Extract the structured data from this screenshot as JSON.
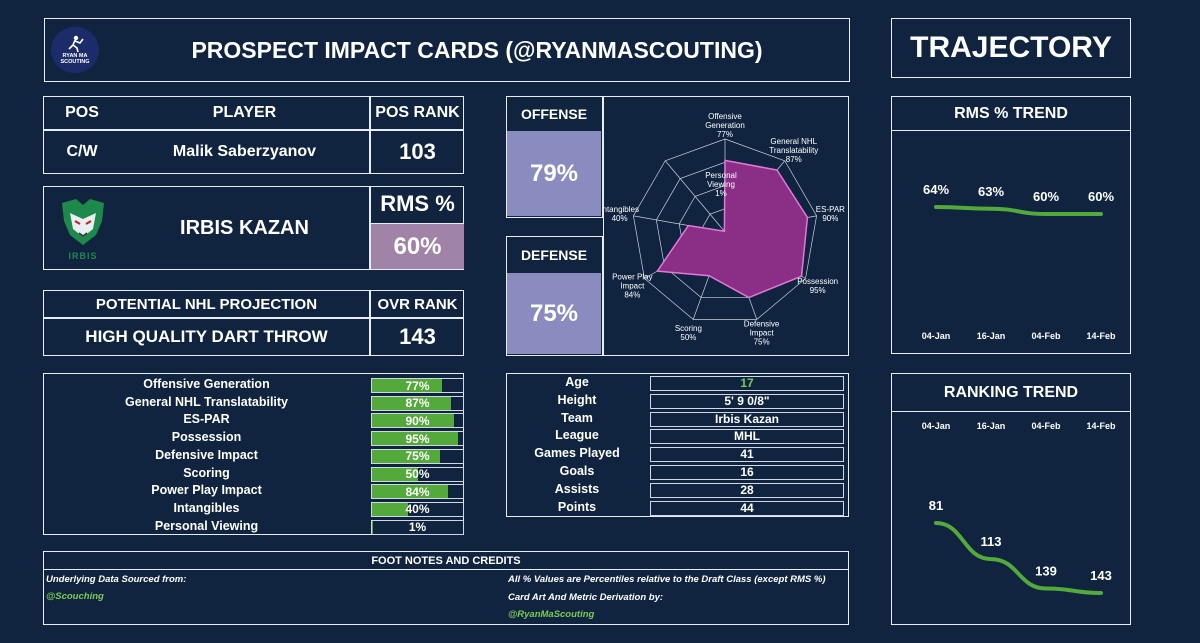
{
  "header": {
    "logo_text": "RYAN MA SCOUTING",
    "title": "PROSPECT IMPACT CARDS (@RYANMASCOUTING)",
    "trajectory_title": "TRAJECTORY"
  },
  "player": {
    "pos_header": "POS",
    "player_header": "PLAYER",
    "pos_rank_header": "POS RANK",
    "pos": "C/W",
    "name": "Malik Saberzyanov",
    "pos_rank": "103",
    "team_logo_text": "IRBIS",
    "team": "IRBIS KAZAN",
    "rms_header": "RMS %",
    "rms_value": "60%",
    "projection_header": "POTENTIAL NHL PROJECTION",
    "ovr_rank_header": "OVR RANK",
    "projection": "HIGH QUALITY DART THROW",
    "ovr_rank": "143"
  },
  "scores": {
    "offense_label": "OFFENSE",
    "offense_value": "79%",
    "defense_label": "DEFENSE",
    "defense_value": "75%"
  },
  "metrics": [
    {
      "label": "Offensive Generation",
      "value": "77%",
      "pct": 77
    },
    {
      "label": "General NHL Translatability",
      "value": "87%",
      "pct": 87
    },
    {
      "label": "ES-PAR",
      "value": "90%",
      "pct": 90
    },
    {
      "label": "Possession",
      "value": "95%",
      "pct": 95
    },
    {
      "label": "Defensive Impact",
      "value": "75%",
      "pct": 75
    },
    {
      "label": "Scoring",
      "value": "50%",
      "pct": 50
    },
    {
      "label": "Power Play Impact",
      "value": "84%",
      "pct": 84
    },
    {
      "label": "Intangibles",
      "value": "40%",
      "pct": 40
    },
    {
      "label": "Personal Viewing",
      "value": "1%",
      "pct": 1
    }
  ],
  "bio": [
    {
      "label": "Age",
      "value": "17"
    },
    {
      "label": "Height",
      "value": "5' 9 0/8\""
    },
    {
      "label": "Team",
      "value": "Irbis Kazan"
    },
    {
      "label": "League",
      "value": "MHL"
    },
    {
      "label": "Games Played",
      "value": "41"
    },
    {
      "label": "Goals",
      "value": "16"
    },
    {
      "label": "Assists",
      "value": "28"
    },
    {
      "label": "Points",
      "value": "44"
    }
  ],
  "footer": {
    "title": "FOOT NOTES AND CREDITS",
    "data_source_label": "Underlying Data Sourced from:",
    "data_source_handle": "@Scouching",
    "percentile_note": "All % Values are Percentiles relative to the Draft Class (except RMS %)",
    "art_label": "Card Art And Metric Derivation by:",
    "art_handle": "@RyanMaScouting"
  },
  "colors": {
    "background": "#10243f",
    "score_box": "#8a8cc0",
    "rms_box": "#a083a6",
    "bar_green": "#53a93a",
    "radar_fill": "#8b2e86",
    "radar_stroke": "#e07ad8",
    "trend_line": "#53a93a"
  },
  "chart_data": [
    {
      "type": "radar",
      "categories": [
        "Offensive Generation",
        "General NHL Translatability",
        "ES-PAR",
        "Possession",
        "Defensive Impact",
        "Scoring",
        "Power Play Impact",
        "Intangibles",
        "Personal Viewing"
      ],
      "category_lines": [
        [
          "Offensive",
          "Generation",
          "77%"
        ],
        [
          "General NHL",
          "Translatability",
          "87%"
        ],
        [
          "ES-PAR",
          "90%"
        ],
        [
          "Possession",
          "95%"
        ],
        [
          "Defensive",
          "Impact",
          "75%"
        ],
        [
          "Scoring",
          "50%"
        ],
        [
          "Power Play",
          "Impact",
          "84%"
        ],
        [
          "Intangibles",
          "40%"
        ],
        [
          "Personal",
          "Viewing",
          "1%"
        ]
      ],
      "values": [
        77,
        87,
        90,
        95,
        75,
        50,
        84,
        40,
        1
      ],
      "ylim": [
        0,
        100
      ]
    },
    {
      "type": "line",
      "title": "RMS % TREND",
      "categories": [
        "04-Jan",
        "16-Jan",
        "04-Feb",
        "14-Feb"
      ],
      "values": [
        64,
        63,
        60,
        60
      ],
      "value_labels": [
        "64%",
        "63%",
        "60%",
        "60%"
      ]
    },
    {
      "type": "line",
      "title": "RANKING TREND",
      "categories": [
        "04-Jan",
        "16-Jan",
        "04-Feb",
        "14-Feb"
      ],
      "values": [
        81,
        113,
        139,
        143
      ],
      "value_labels": [
        "81",
        "113",
        "139",
        "143"
      ]
    }
  ]
}
